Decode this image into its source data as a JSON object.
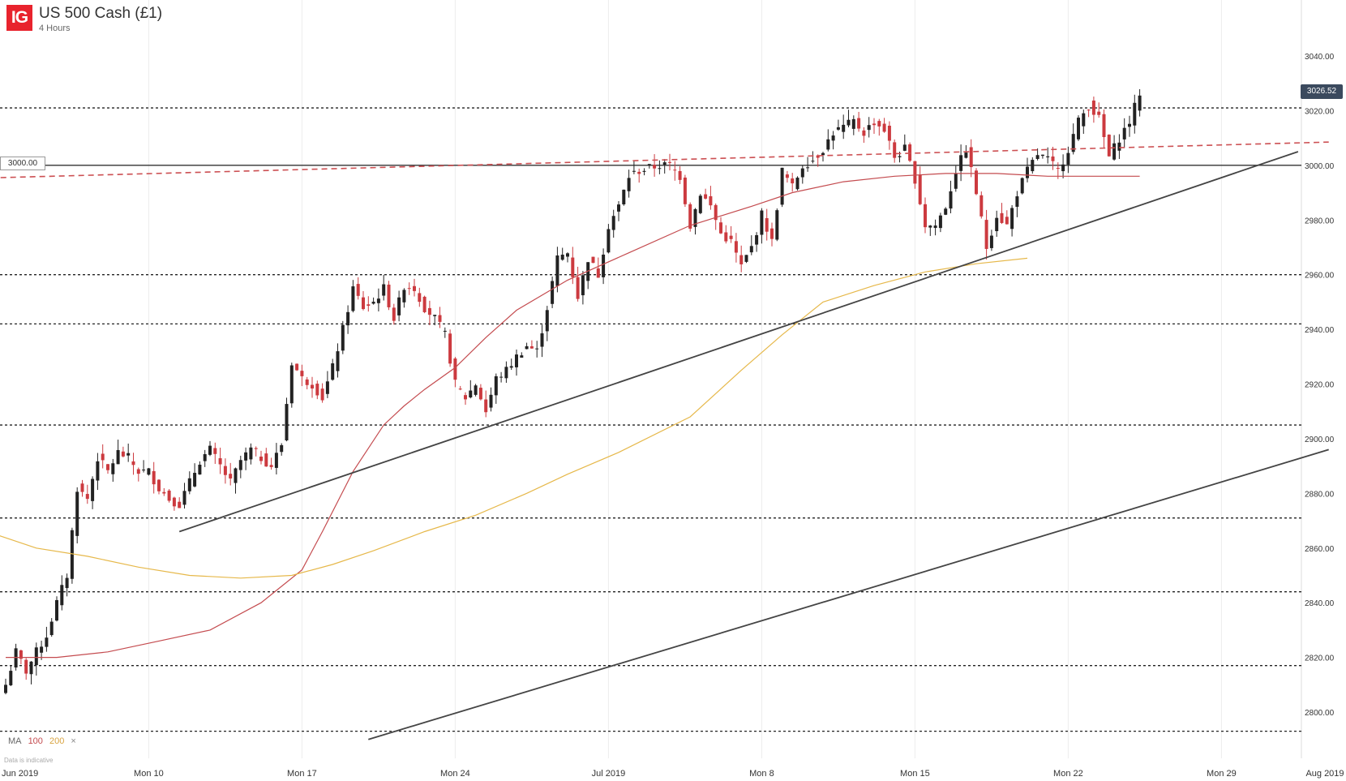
{
  "header": {
    "logo_text": "IG",
    "title": "US 500 Cash (£1)",
    "subtitle": "4 Hours"
  },
  "legend": {
    "ma_label": "MA",
    "ma1": "100",
    "ma2": "200",
    "close": "×"
  },
  "disclaimer": "Data is indicative",
  "level_label": "3000.00",
  "current_price": "3026.52",
  "colors": {
    "bull": "#222222",
    "bear": "#cc3a3f",
    "ma100": "#c44b4f",
    "ma200": "#e6b84a",
    "trend": "#444444",
    "resistance_dashed": "#cc4f52",
    "horizontal": "#333333"
  },
  "chart_data": {
    "type": "candlestick",
    "title": "US 500 Cash (£1)",
    "timeframe": "4 Hours",
    "ylim": [
      2790,
      3048
    ],
    "y_ticks": [
      2800,
      2820,
      2840,
      2860,
      2880,
      2900,
      2920,
      2940,
      2960,
      2980,
      3000,
      3020,
      3040
    ],
    "y_tick_labels": [
      "2800.00",
      "2820.00",
      "2840.00",
      "2860.00",
      "2880.00",
      "2900.00",
      "2920.00",
      "2940.00",
      "2960.00",
      "2980.00",
      "3000.00",
      "3020.00",
      "3040.00"
    ],
    "x_labels": [
      "Jun 2019",
      "Mon 10",
      "Mon 17",
      "Mon 24",
      "Jul 2019",
      "Mon 8",
      "Mon 15",
      "Mon 22",
      "Mon 29",
      "Aug 2019"
    ],
    "x_label_bars": [
      -2,
      28,
      58,
      88,
      118,
      148,
      178,
      208,
      238,
      258
    ],
    "bar_count": 260,
    "horizontal_levels_dotted": [
      3021,
      2960,
      2942,
      2905,
      2871,
      2844,
      2817,
      2793
    ],
    "horizontal_level_solid": 3000,
    "resistance_line": {
      "from": [
        -1,
        2995.5
      ],
      "to": [
        259,
        3008.5
      ]
    },
    "trendline_1": {
      "from": [
        34,
        2866
      ],
      "to": [
        253,
        3005
      ]
    },
    "trendline_2": {
      "from": [
        71,
        2790
      ],
      "to": [
        259,
        2896
      ]
    },
    "series": [
      {
        "name": "Price",
        "anchors": [
          [
            0,
            2810
          ],
          [
            2,
            2822
          ],
          [
            4,
            2815
          ],
          [
            6,
            2822
          ],
          [
            8,
            2828
          ],
          [
            10,
            2840
          ],
          [
            12,
            2850
          ],
          [
            14,
            2882
          ],
          [
            16,
            2878
          ],
          [
            18,
            2893
          ],
          [
            20,
            2888
          ],
          [
            22,
            2895
          ],
          [
            24,
            2893
          ],
          [
            26,
            2888
          ],
          [
            28,
            2888
          ],
          [
            30,
            2882
          ],
          [
            32,
            2878
          ],
          [
            34,
            2876
          ],
          [
            36,
            2884
          ],
          [
            38,
            2892
          ],
          [
            40,
            2896
          ],
          [
            42,
            2890
          ],
          [
            44,
            2884
          ],
          [
            46,
            2892
          ],
          [
            48,
            2896
          ],
          [
            50,
            2893
          ],
          [
            52,
            2890
          ],
          [
            54,
            2898
          ],
          [
            56,
            2928
          ],
          [
            58,
            2922
          ],
          [
            60,
            2920
          ],
          [
            62,
            2915
          ],
          [
            64,
            2926
          ],
          [
            66,
            2940
          ],
          [
            68,
            2955
          ],
          [
            70,
            2948
          ],
          [
            72,
            2950
          ],
          [
            74,
            2955
          ],
          [
            76,
            2944
          ],
          [
            78,
            2956
          ],
          [
            80,
            2955
          ],
          [
            82,
            2948
          ],
          [
            84,
            2944
          ],
          [
            86,
            2938
          ],
          [
            88,
            2920
          ],
          [
            90,
            2915
          ],
          [
            92,
            2920
          ],
          [
            94,
            2910
          ],
          [
            96,
            2922
          ],
          [
            98,
            2925
          ],
          [
            100,
            2930
          ],
          [
            102,
            2934
          ],
          [
            104,
            2932
          ],
          [
            106,
            2948
          ],
          [
            108,
            2966
          ],
          [
            110,
            2968
          ],
          [
            112,
            2952
          ],
          [
            114,
            2966
          ],
          [
            116,
            2960
          ],
          [
            118,
            2978
          ],
          [
            120,
            2985
          ],
          [
            122,
            2996
          ],
          [
            124,
            2998
          ],
          [
            126,
            2999
          ],
          [
            128,
            3000
          ],
          [
            130,
            3000
          ],
          [
            132,
            2996
          ],
          [
            134,
            2978
          ],
          [
            136,
            2990
          ],
          [
            138,
            2985
          ],
          [
            140,
            2975
          ],
          [
            142,
            2972
          ],
          [
            144,
            2963
          ],
          [
            146,
            2970
          ],
          [
            148,
            2982
          ],
          [
            150,
            2972
          ],
          [
            152,
            2998
          ],
          [
            154,
            2992
          ],
          [
            156,
            3000
          ],
          [
            158,
            3002
          ],
          [
            160,
            3006
          ],
          [
            162,
            3012
          ],
          [
            164,
            3014
          ],
          [
            166,
            3016
          ],
          [
            168,
            3012
          ],
          [
            170,
            3016
          ],
          [
            172,
            3013
          ],
          [
            174,
            3003
          ],
          [
            176,
            3006
          ],
          [
            178,
            2995
          ],
          [
            180,
            2978
          ],
          [
            182,
            2978
          ],
          [
            184,
            2985
          ],
          [
            186,
            2998
          ],
          [
            188,
            3006
          ],
          [
            190,
            2990
          ],
          [
            192,
            2970
          ],
          [
            194,
            2982
          ],
          [
            196,
            2978
          ],
          [
            198,
            2990
          ],
          [
            200,
            2998
          ],
          [
            202,
            3004
          ],
          [
            204,
            3002
          ],
          [
            206,
            2998
          ],
          [
            208,
            3006
          ],
          [
            210,
            3016
          ],
          [
            212,
            3022
          ],
          [
            214,
            3017
          ],
          [
            216,
            3003
          ],
          [
            218,
            3010
          ],
          [
            220,
            3016
          ],
          [
            222,
            3026.5
          ]
        ]
      },
      {
        "name": "MA 100",
        "points": [
          [
            0,
            2820
          ],
          [
            10,
            2820
          ],
          [
            20,
            2822
          ],
          [
            30,
            2826
          ],
          [
            40,
            2830
          ],
          [
            50,
            2840
          ],
          [
            58,
            2852
          ],
          [
            62,
            2866
          ],
          [
            68,
            2888
          ],
          [
            74,
            2905
          ],
          [
            78,
            2912
          ],
          [
            82,
            2918
          ],
          [
            88,
            2926
          ],
          [
            94,
            2937
          ],
          [
            100,
            2947
          ],
          [
            110,
            2958
          ],
          [
            122,
            2968
          ],
          [
            134,
            2978
          ],
          [
            146,
            2985
          ],
          [
            154,
            2990
          ],
          [
            164,
            2994
          ],
          [
            174,
            2996
          ],
          [
            184,
            2997
          ],
          [
            194,
            2997
          ],
          [
            204,
            2996
          ],
          [
            214,
            2996
          ],
          [
            222,
            2996
          ]
        ]
      },
      {
        "name": "MA 200",
        "points": [
          [
            -2,
            2865
          ],
          [
            6,
            2860
          ],
          [
            16,
            2857
          ],
          [
            26,
            2853
          ],
          [
            36,
            2850
          ],
          [
            46,
            2849
          ],
          [
            56,
            2850
          ],
          [
            64,
            2854
          ],
          [
            72,
            2859
          ],
          [
            82,
            2866
          ],
          [
            92,
            2872
          ],
          [
            102,
            2880
          ],
          [
            110,
            2887
          ],
          [
            120,
            2895
          ],
          [
            134,
            2908
          ],
          [
            144,
            2925
          ],
          [
            152,
            2938
          ],
          [
            160,
            2950
          ],
          [
            170,
            2956
          ],
          [
            180,
            2961
          ],
          [
            190,
            2964
          ],
          [
            200,
            2966
          ]
        ]
      }
    ]
  }
}
